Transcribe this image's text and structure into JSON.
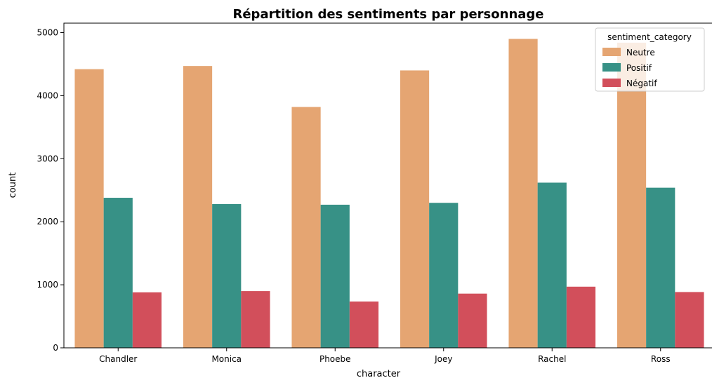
{
  "chart_data": {
    "type": "bar",
    "title": "Répartition des sentiments par personnage",
    "xlabel": "character",
    "ylabel": "count",
    "categories": [
      "Chandler",
      "Monica",
      "Phoebe",
      "Joey",
      "Rachel",
      "Ross"
    ],
    "ylim": [
      0,
      5150
    ],
    "yticks": [
      0,
      1000,
      2000,
      3000,
      4000,
      5000
    ],
    "legend": {
      "title": "sentiment_category",
      "placement": "top-right"
    },
    "series": [
      {
        "name": "Neutre",
        "color": "#e5a572",
        "values": [
          4420,
          4470,
          3820,
          4400,
          4900,
          4840
        ]
      },
      {
        "name": "Positif",
        "color": "#379186",
        "values": [
          2380,
          2280,
          2270,
          2300,
          2620,
          2540
        ]
      },
      {
        "name": "Négatif",
        "color": "#d24f5b",
        "values": [
          880,
          900,
          735,
          860,
          970,
          885
        ]
      }
    ]
  }
}
